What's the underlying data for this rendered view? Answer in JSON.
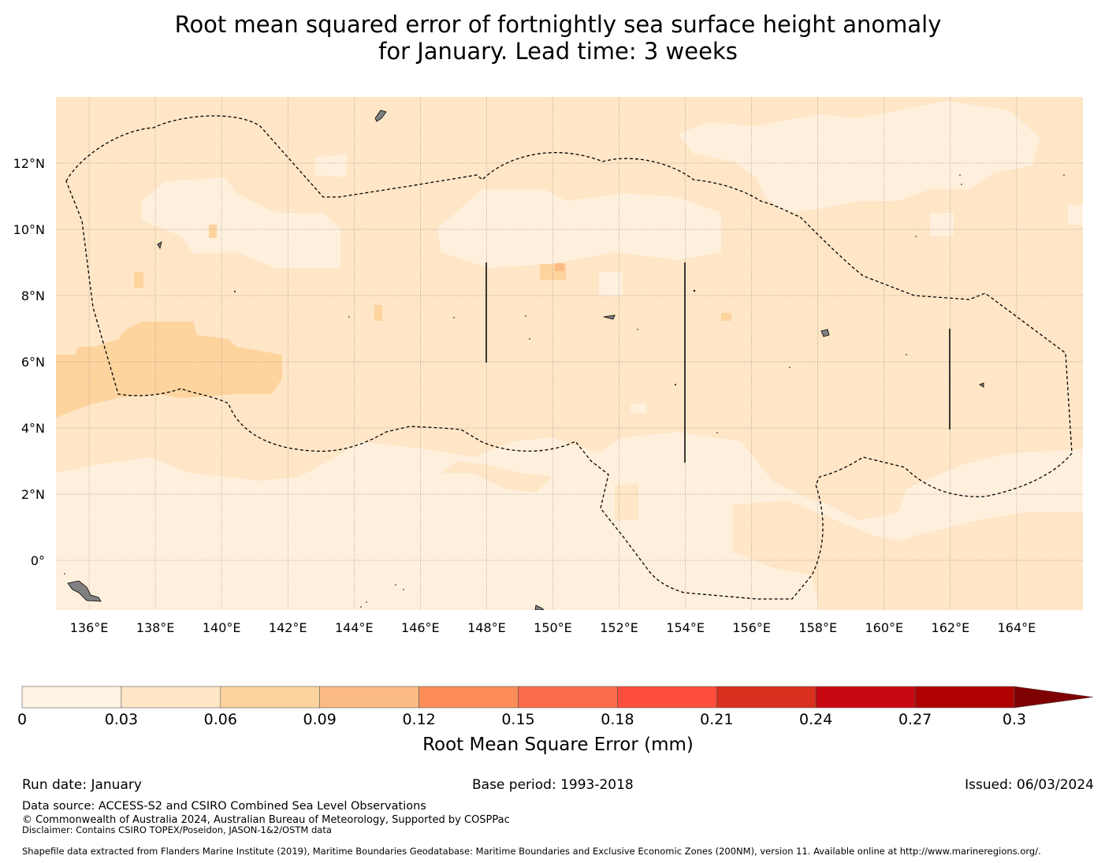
{
  "title_line1": "Root mean squared error of fortnightly sea surface height anomaly",
  "title_line2": "for January. Lead time: 3 weeks",
  "map": {
    "lon_range": [
      135,
      166
    ],
    "lat_range": [
      -1.5,
      14
    ],
    "lon_ticks": [
      "136°E",
      "138°E",
      "140°E",
      "142°E",
      "144°E",
      "146°E",
      "148°E",
      "150°E",
      "152°E",
      "154°E",
      "156°E",
      "158°E",
      "160°E",
      "162°E",
      "164°E"
    ],
    "lon_tick_values": [
      136,
      138,
      140,
      142,
      144,
      146,
      148,
      150,
      152,
      154,
      156,
      158,
      160,
      162,
      164
    ],
    "lat_ticks": [
      "12°N",
      "10°N",
      "8°N",
      "6°N",
      "4°N",
      "2°N",
      "0°"
    ],
    "lat_tick_values": [
      12,
      10,
      8,
      6,
      4,
      2,
      0
    ],
    "colors": {
      "ocean_base": "#fee6c6",
      "lightest": "#fff0dd",
      "medium": "#fdd49e",
      "land": "#808080",
      "boundary": "#000000",
      "gridline": "#888888"
    }
  },
  "colorbar": {
    "ticks": [
      "0",
      "0.03",
      "0.06",
      "0.09",
      "0.12",
      "0.15",
      "0.18",
      "0.21",
      "0.24",
      "0.27",
      "0.3"
    ],
    "colors": [
      "#fff3e4",
      "#fee6c6",
      "#fdd49e",
      "#fdbb84",
      "#fc8d59",
      "#fc6b4a",
      "#fc4e3a",
      "#d9301f",
      "#c80812",
      "#b00000",
      "#7f0000"
    ],
    "label": "Root Mean Square Error (mm)"
  },
  "footer": {
    "run_date": "Run date: January",
    "base_period": "Base period: 1993-2018",
    "issued": "Issued: 06/03/2024",
    "data_source": "Data source: ACCESS-S2 and CSIRO Combined Sea Level Observations",
    "copyright": "© Commonwealth of Australia 2024, Australian Bureau of Meteorology, Supported by COSPPac",
    "disclaimer": "Disclaimer: Contains CSIRO TOPEX/Poseidon, JASON-1&2/OSTM data",
    "shapefile": "Shapefile data extracted from Flanders Marine Institute (2019), Maritime Boundaries Geodatabase: Maritime Boundaries and Exclusive Economic Zones (200NM), version 11. Available online at http://www.marineregions.org/."
  }
}
